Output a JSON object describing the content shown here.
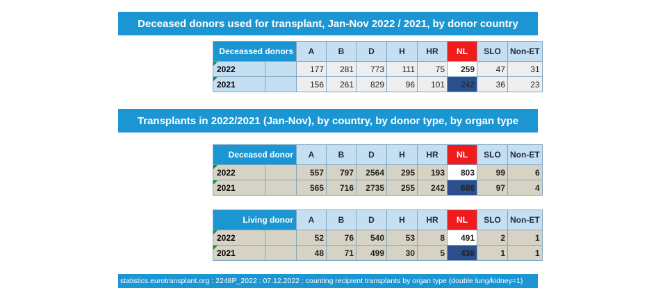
{
  "banner1": "Deceased donors used for transplant, Jan-Nov 2022 / 2021, by donor country",
  "banner2": "Transplants in 2022/2021 (Jan-Nov), by country, by donor type, by organ type",
  "columns": [
    "A",
    "B",
    "D",
    "H",
    "HR",
    "NL",
    "SLO",
    "Non-ET"
  ],
  "table1": {
    "corner": "Deceassed donors",
    "rows": [
      {
        "year": "2022",
        "values": [
          "177",
          "281",
          "773",
          "111",
          "75",
          "259",
          "47",
          "31"
        ]
      },
      {
        "year": "2021",
        "values": [
          "156",
          "261",
          "829",
          "96",
          "101",
          "242",
          "36",
          "23"
        ]
      }
    ]
  },
  "table2": {
    "corner": "Deceased donor",
    "rows": [
      {
        "year": "2022",
        "values": [
          "557",
          "797",
          "2564",
          "295",
          "193",
          "803",
          "99",
          "6"
        ]
      },
      {
        "year": "2021",
        "values": [
          "565",
          "716",
          "2735",
          "255",
          "242",
          "686",
          "97",
          "4"
        ]
      }
    ]
  },
  "table3": {
    "corner": "Living donor",
    "rows": [
      {
        "year": "2022",
        "values": [
          "52",
          "76",
          "540",
          "53",
          "8",
          "491",
          "2",
          "1"
        ]
      },
      {
        "year": "2021",
        "values": [
          "48",
          "71",
          "499",
          "30",
          "5",
          "438",
          "1",
          "1"
        ]
      }
    ]
  },
  "footer": "statistics.eurotransplant.org : 2248P_2022 : 07.12.2022 : counting recipient transplants by organ type (double lung/kidney=1)",
  "colors": {
    "banner": "#1b96d2",
    "nl_header": "#ee1c1c",
    "nl_2021_cell": "#2b4e8c",
    "nl_2022_text": "#2a6b21"
  }
}
